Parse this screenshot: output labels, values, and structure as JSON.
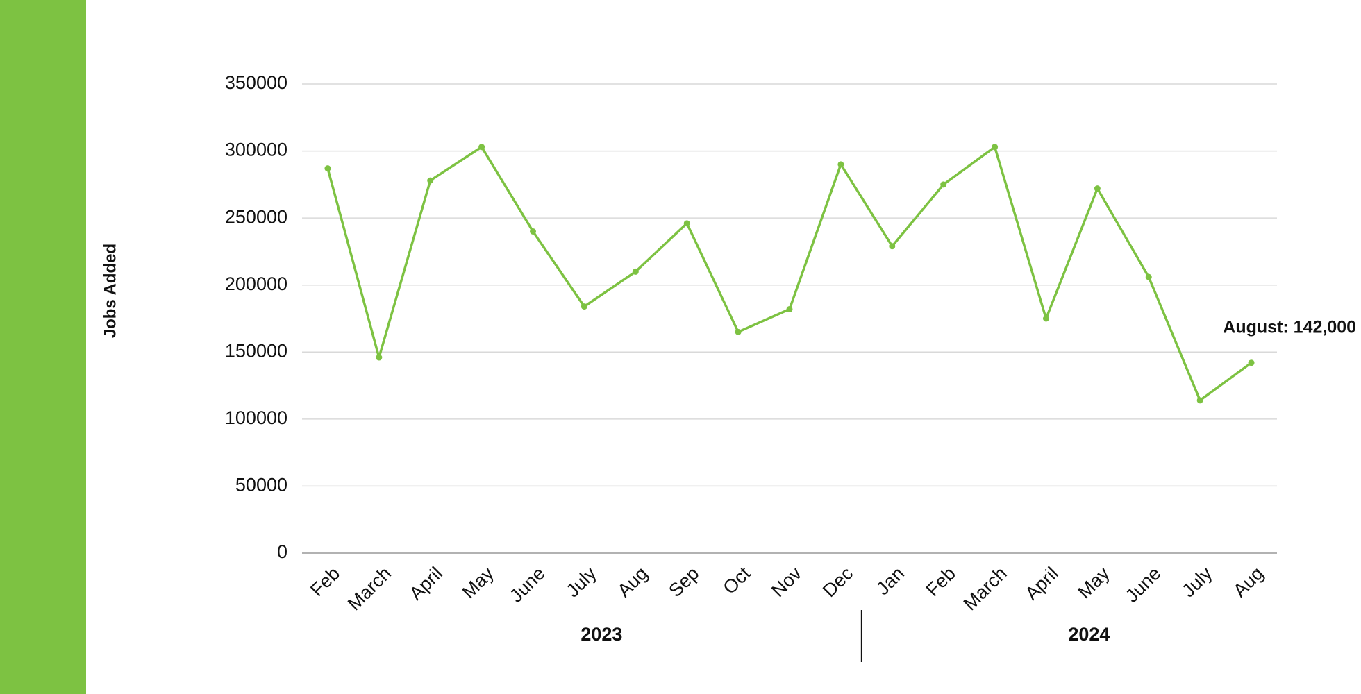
{
  "chart_data": {
    "type": "line",
    "y_label": "Jobs Added",
    "category_groups": [
      {
        "label": "2023",
        "categories": [
          "Feb",
          "March",
          "April",
          "May",
          "June",
          "July",
          "Aug",
          "Sep",
          "Oct",
          "Nov",
          "Dec"
        ]
      },
      {
        "label": "2024",
        "categories": [
          "Jan",
          "Feb",
          "March",
          "April",
          "May",
          "June",
          "July",
          "Aug"
        ]
      }
    ],
    "series": [
      {
        "name": "Jobs Added",
        "color": "#7dc242",
        "values": [
          287000,
          146000,
          278000,
          303000,
          240000,
          184000,
          210000,
          246000,
          165000,
          182000,
          290000,
          229000,
          275000,
          303000,
          175000,
          272000,
          206000,
          114000,
          142000
        ]
      }
    ],
    "annotation": "August: 142,000",
    "ylim": [
      0,
      350000
    ],
    "yticks": [
      0,
      50000,
      100000,
      150000,
      200000,
      250000,
      300000,
      350000
    ],
    "grid": true,
    "sidebar_color": "#7dc242"
  }
}
